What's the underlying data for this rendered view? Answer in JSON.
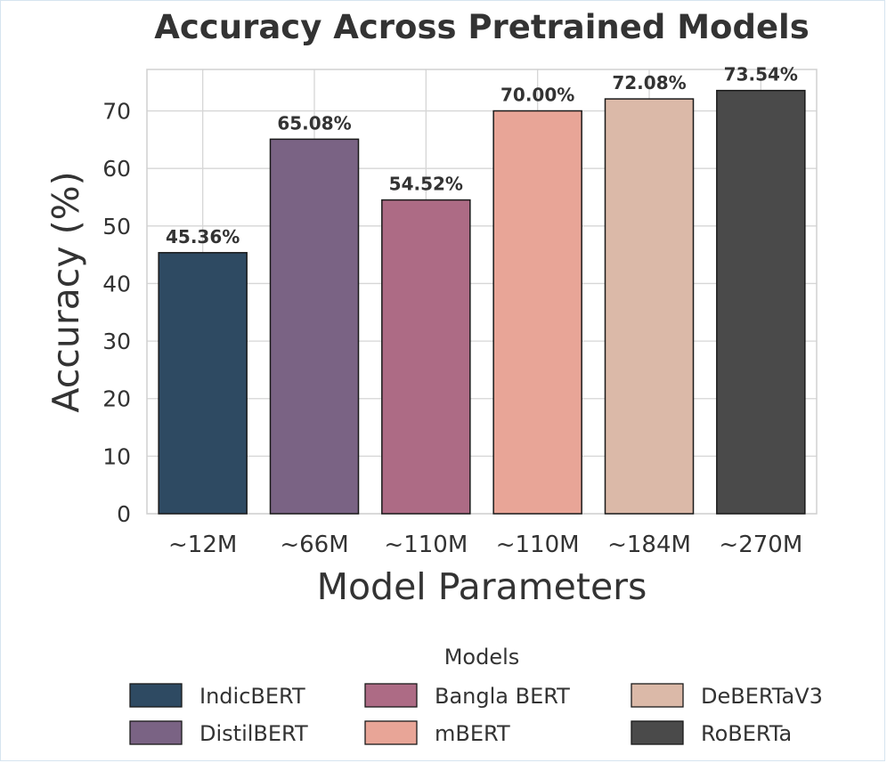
{
  "chart_data": {
    "type": "bar",
    "title": "Accuracy Across Pretrained Models",
    "xlabel": "Model Parameters",
    "ylabel": "Accuracy (%)",
    "categories": [
      "~12M",
      "~66M",
      "~110M",
      "~110M",
      "~184M",
      "~270M"
    ],
    "models": [
      "IndicBERT",
      "DistilBERT",
      "Bangla BERT",
      "mBERT",
      "DeBERTaV3",
      "RoBERTa"
    ],
    "values": [
      45.36,
      65.08,
      54.52,
      70.0,
      72.08,
      73.54
    ],
    "value_labels": [
      "45.36%",
      "65.08%",
      "54.52%",
      "70.00%",
      "72.08%",
      "73.54%"
    ],
    "colors": [
      "#2e4a62",
      "#7a6384",
      "#ad6b85",
      "#e8a597",
      "#dbb9a8",
      "#4a4a4a"
    ],
    "ylim": [
      0,
      77.2
    ],
    "yticks": [
      0,
      10,
      20,
      30,
      40,
      50,
      60,
      70
    ],
    "grid": true,
    "legend": {
      "title": "Models",
      "placement": "bottom-center",
      "columns": 3
    }
  }
}
